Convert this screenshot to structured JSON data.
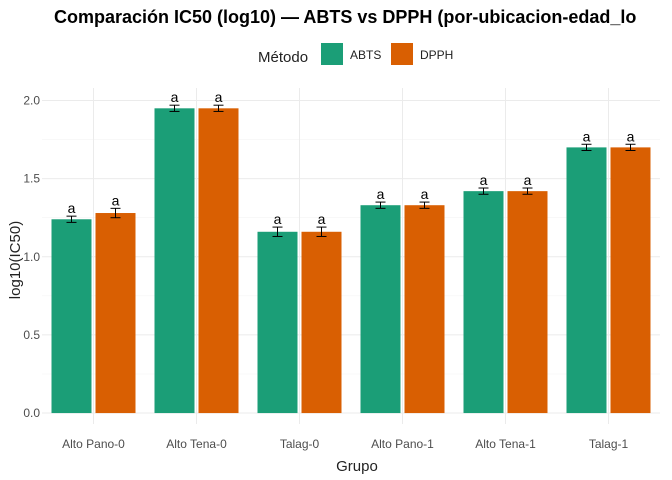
{
  "chart_data": {
    "type": "bar",
    "title": "Comparación IC50 (log10) — ABTS vs DPPH (por-ubicacion-edad_lo",
    "xlabel": "Grupo",
    "ylabel": "log10(IC50)",
    "ylim": [
      -0.07,
      2.08
    ],
    "yticks": [
      "0.0",
      "0.5",
      "1.0",
      "1.5",
      "2.0"
    ],
    "legend_title": "Método",
    "legend_position": "top",
    "grid": true,
    "categories": [
      "Alto Pano-0",
      "Alto Tena-0",
      "Talag-0",
      "Alto Pano-1",
      "Alto Tena-1",
      "Talag-1"
    ],
    "series": [
      {
        "name": "ABTS",
        "color": "#1b9e77",
        "values": [
          1.24,
          1.95,
          1.16,
          1.33,
          1.42,
          1.7
        ],
        "errors": [
          0.02,
          0.02,
          0.03,
          0.02,
          0.02,
          0.02
        ],
        "labels": [
          "a",
          "a",
          "a",
          "a",
          "a",
          "a"
        ]
      },
      {
        "name": "DPPH",
        "color": "#d95f02",
        "values": [
          1.28,
          1.95,
          1.16,
          1.33,
          1.42,
          1.7
        ],
        "errors": [
          0.03,
          0.02,
          0.03,
          0.02,
          0.02,
          0.02
        ],
        "labels": [
          "a",
          "a",
          "a",
          "a",
          "a",
          "a"
        ]
      }
    ]
  }
}
